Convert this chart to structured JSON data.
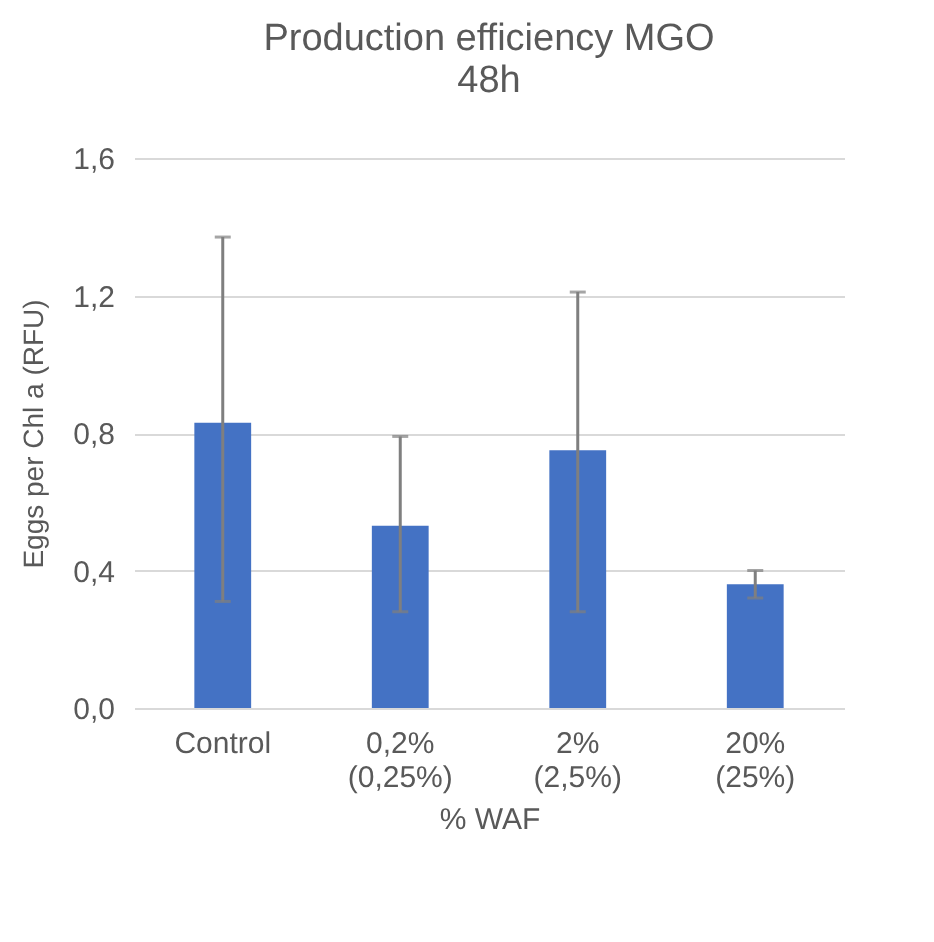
{
  "chart_data": {
    "type": "bar",
    "title": "Production efficiency MGO\n48h",
    "xlabel": "% WAF",
    "ylabel": "Eggs per Chl a (RFU)",
    "categories": [
      "Control",
      "0,2%\n(0,25%)",
      "2%\n(2,5%)",
      "20%\n(25%)"
    ],
    "values": [
      0.83,
      0.53,
      0.75,
      0.36
    ],
    "color": "#4472c4",
    "errors": [
      [
        0.31,
        1.37
      ],
      [
        0.28,
        0.79
      ],
      [
        0.28,
        1.21
      ],
      [
        0.32,
        0.4
      ]
    ],
    "ylim": [
      0,
      1.6
    ],
    "yticks": [
      {
        "value": 0,
        "label": "0,0"
      },
      {
        "value": 0.4,
        "label": "0,4"
      },
      {
        "value": 0.8,
        "label": "0,8"
      },
      {
        "value": 1.2,
        "label": "1,2"
      },
      {
        "value": 1.6,
        "label": "1,6"
      }
    ],
    "grid": "y"
  }
}
